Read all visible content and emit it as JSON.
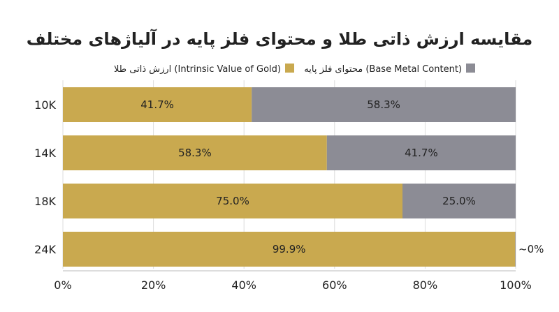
{
  "chart_data": {
    "type": "bar",
    "orientation": "horizontal",
    "stacked": true,
    "title": "مقایسه ارزش ذاتی طلا و محتوای فلز پایه در آلیاژهای مختلف",
    "categories": [
      "10K",
      "14K",
      "18K",
      "24K"
    ],
    "series": [
      {
        "name": "ارزش ذاتی طلا (Intrinsic Value of Gold)",
        "color": "#C9A94F",
        "values": [
          41.7,
          58.3,
          75.0,
          99.9
        ],
        "labels": [
          "41.7%",
          "58.3%",
          "75.0%",
          "99.9%"
        ]
      },
      {
        "name": "محتوای فلز پایه (Base Metal Content)",
        "color": "#8C8C95",
        "values": [
          58.3,
          41.7,
          25.0,
          0.1
        ],
        "labels": [
          "58.3%",
          "41.7%",
          "25.0%",
          "~0%"
        ]
      }
    ],
    "xlim": [
      0,
      100
    ],
    "xticks": [
      "0%",
      "20%",
      "40%",
      "60%",
      "80%",
      "100%"
    ],
    "grid": true,
    "legend_position": "top"
  }
}
